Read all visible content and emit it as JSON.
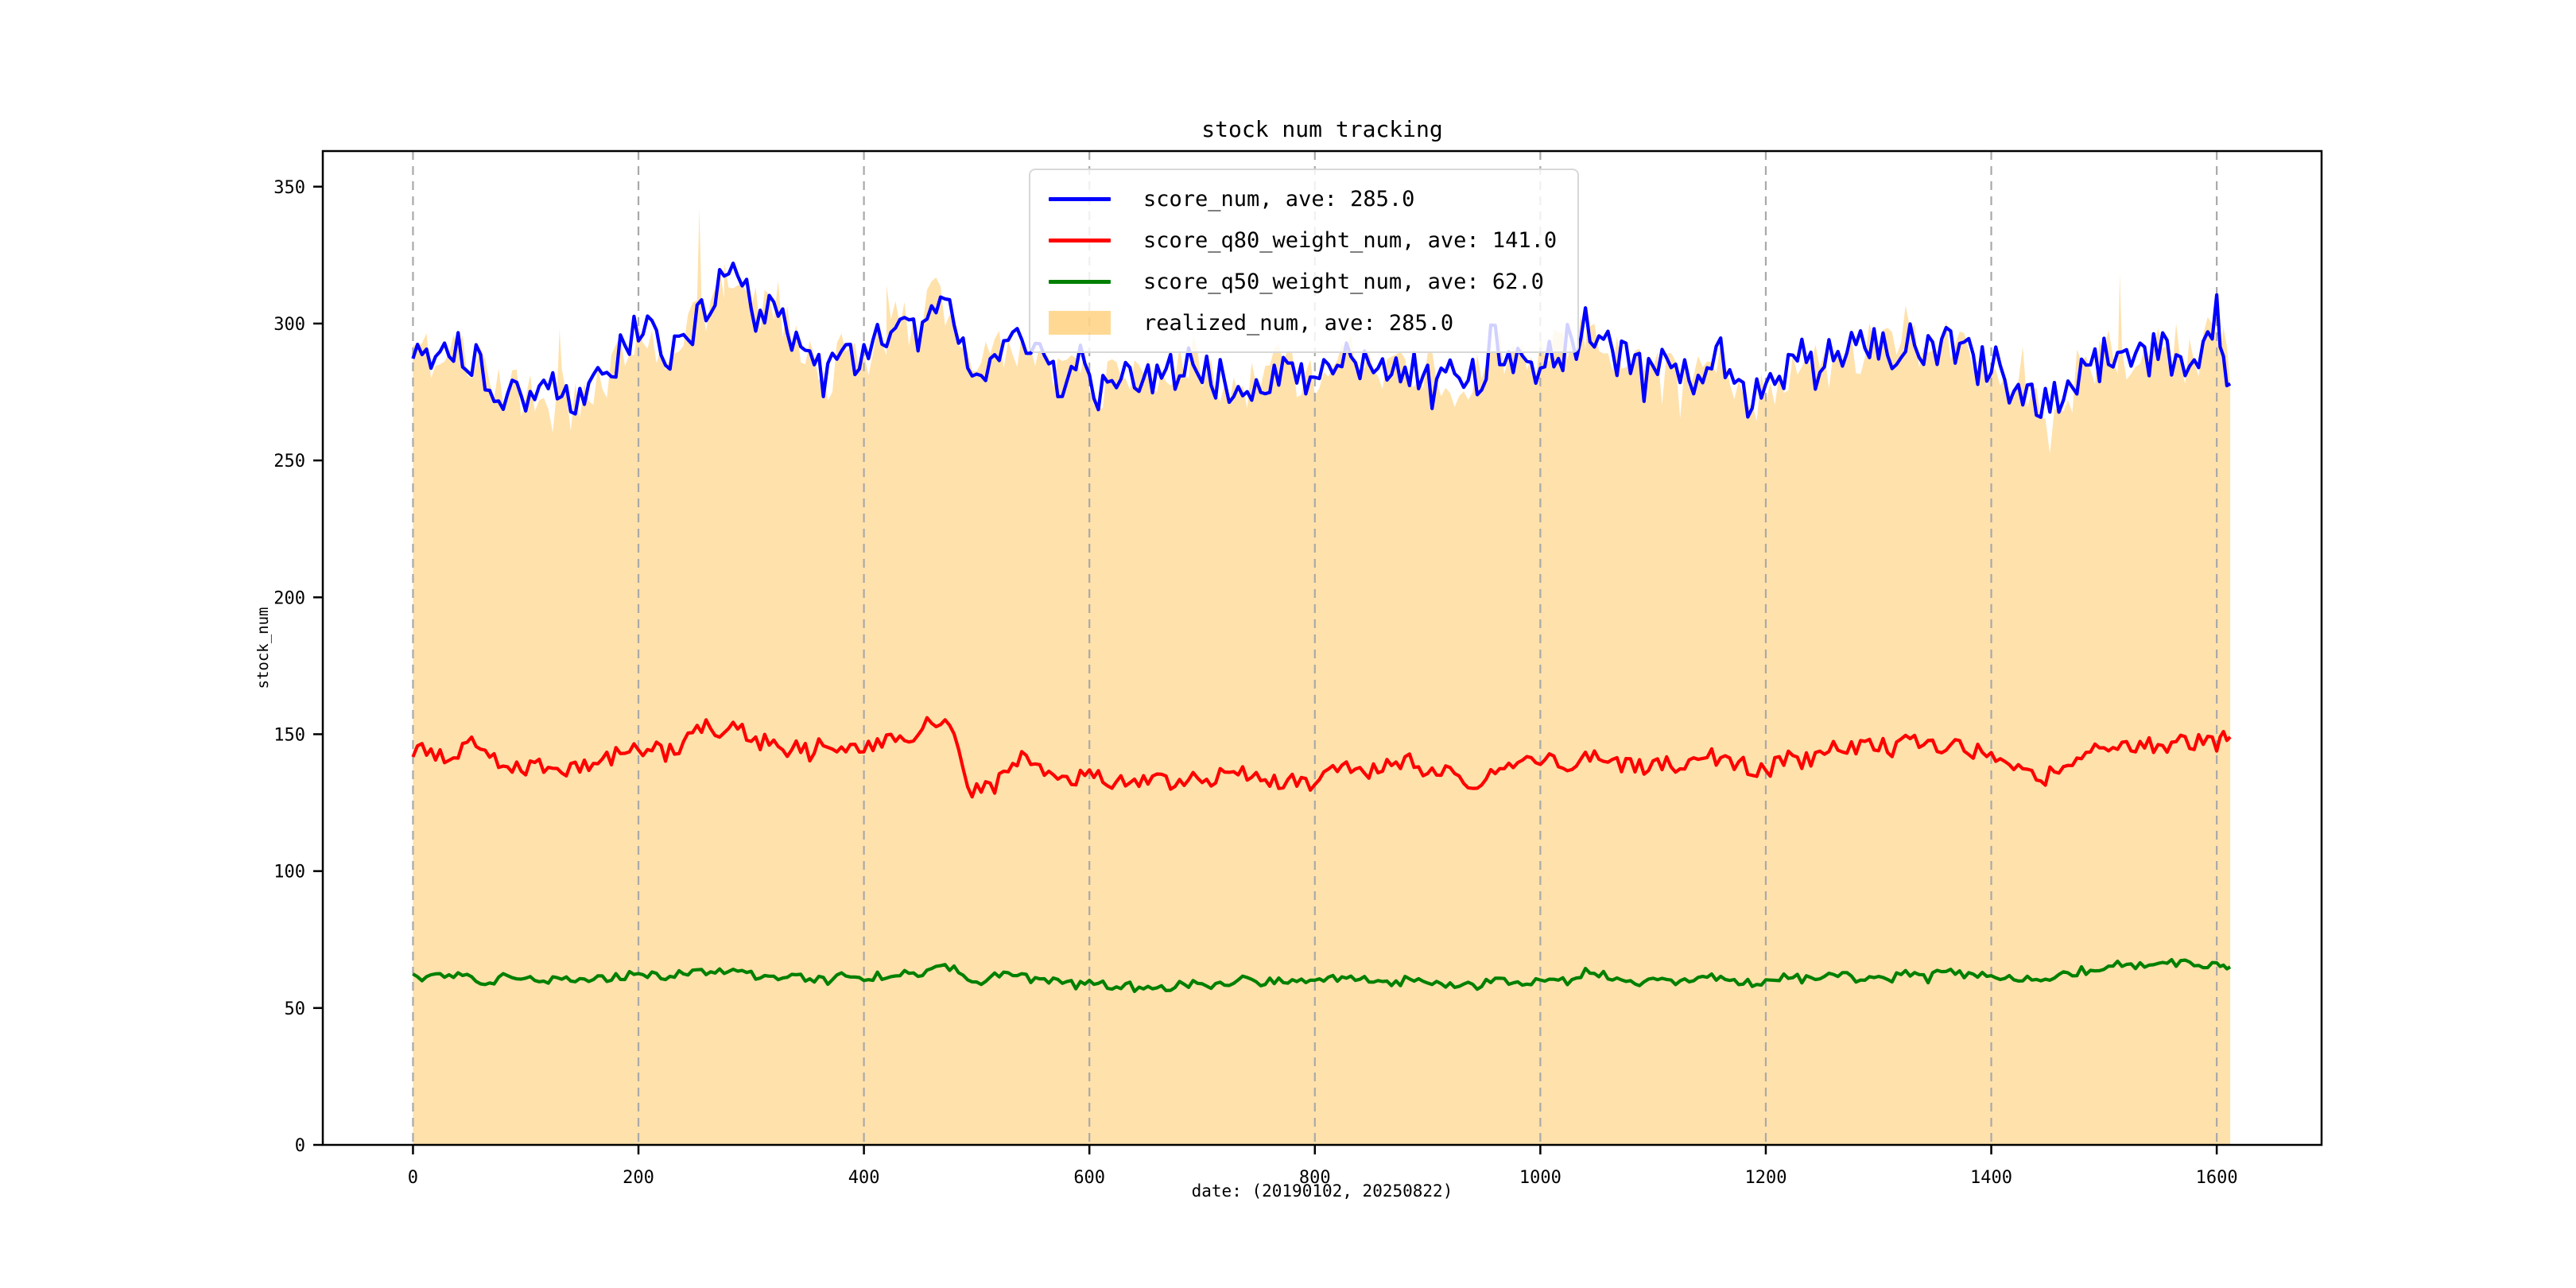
{
  "figure": {
    "title": "stock num tracking",
    "xlabel": "date: (20190102, 20250822)",
    "ylabel": "stock_num"
  },
  "chart_data": {
    "type": "line",
    "title": "stock num tracking",
    "xlabel": "date: (20190102, 20250822)",
    "ylabel": "stock_num",
    "xlim": [
      -80,
      1693
    ],
    "ylim": [
      0,
      363
    ],
    "x_ticks": [
      0,
      200,
      400,
      600,
      800,
      1000,
      1200,
      1400,
      1600
    ],
    "y_ticks": [
      0,
      50,
      100,
      150,
      200,
      250,
      300,
      350
    ],
    "grid": {
      "vertical": true,
      "horizontal": false,
      "style": "dashed",
      "color": "#a9a9a9"
    },
    "legend_position": "upper center",
    "x_start": 0,
    "x_step": 16,
    "x_end": 1612,
    "series": [
      {
        "name": "score_num",
        "label": "score_num, ave: 285.0",
        "type": "line",
        "color": "#0000ff",
        "average": 285.0,
        "noise_amplitude": 8,
        "values": [
          293,
          288,
          295,
          290,
          283,
          276,
          274,
          273,
          277,
          273,
          276,
          283,
          294,
          297,
          288,
          296,
          303,
          312,
          315,
          305,
          310,
          297,
          285,
          280,
          291,
          286,
          295,
          303,
          298,
          310,
          302,
          284,
          288,
          292,
          290,
          283,
          279,
          285,
          275,
          281,
          284,
          280,
          281,
          288,
          283,
          278,
          278,
          281,
          284,
          280,
          281,
          287,
          290,
          285,
          279,
          285,
          283,
          281,
          276,
          280,
          291,
          286,
          284,
          291,
          288,
          299,
          294,
          287,
          282,
          284,
          281,
          279,
          288,
          283,
          270,
          276,
          281,
          287,
          283,
          291,
          289,
          294,
          290,
          296,
          288,
          294,
          289,
          284,
          281,
          278,
          273,
          271,
          276,
          284,
          289,
          284,
          287,
          291,
          285,
          289,
          303,
          278
        ]
      },
      {
        "name": "score_q80_weight_num",
        "label": "score_q80_weight_num, ave: 141.0",
        "type": "line",
        "color": "#ff0000",
        "average": 141.0,
        "noise_amplitude": 3.2,
        "values": [
          144,
          143,
          140,
          147,
          142,
          138,
          137,
          139,
          136,
          138,
          140,
          142,
          144,
          145,
          143,
          147,
          152,
          150,
          153,
          148,
          146,
          144,
          146,
          147,
          145,
          146,
          147,
          149,
          151,
          155,
          151,
          128,
          134,
          139,
          141,
          138,
          135,
          134,
          134,
          133,
          134,
          133,
          132,
          135,
          133,
          136,
          138,
          135,
          133,
          134,
          132,
          136,
          138,
          137,
          139,
          141,
          138,
          136,
          134,
          133,
          137,
          140,
          143,
          141,
          138,
          143,
          141,
          139,
          138,
          140,
          139,
          141,
          142,
          140,
          138,
          137,
          141,
          140,
          143,
          145,
          144,
          146,
          145,
          147,
          145,
          146,
          144,
          143,
          141,
          138,
          133,
          136,
          140,
          143,
          145,
          146,
          147,
          146,
          147,
          146,
          147,
          149
        ]
      },
      {
        "name": "score_q50_weight_num",
        "label": "score_q50_weight_num, ave: 62.0",
        "type": "line",
        "color": "#008000",
        "average": 62.0,
        "noise_amplitude": 1.6,
        "values": [
          62,
          61,
          62,
          61,
          60,
          61,
          60,
          61,
          60,
          61,
          60,
          61,
          62,
          62,
          61,
          63,
          64,
          63,
          64,
          62,
          61,
          62,
          61,
          60,
          62,
          61,
          62,
          63,
          62,
          66,
          64,
          60,
          61,
          62,
          61,
          60,
          59,
          60,
          59,
          58,
          59,
          58,
          58,
          59,
          58,
          59,
          60,
          59,
          60,
          59,
          60,
          61,
          61,
          60,
          59,
          60,
          59,
          58,
          59,
          58,
          61,
          60,
          59,
          61,
          60,
          63,
          61,
          60,
          59,
          60,
          59,
          60,
          61,
          60,
          59,
          60,
          61,
          60,
          61,
          62,
          61,
          62,
          61,
          63,
          62,
          63,
          62,
          63,
          62,
          61,
          60,
          61,
          63,
          64,
          66,
          65,
          66,
          67,
          66,
          66,
          65,
          65
        ]
      },
      {
        "name": "realized_num",
        "label": "realized_num, ave: 285.0",
        "type": "area",
        "color": "#ffa500",
        "fill_color": "rgba(255,165,0,0.33)",
        "average": 285.0,
        "noise_amplitude": 9,
        "spikes": [
          {
            "x": 130,
            "v": 298
          },
          {
            "x": 254,
            "v": 342
          },
          {
            "x": 276,
            "v": 322
          },
          {
            "x": 420,
            "v": 314
          },
          {
            "x": 1042,
            "v": 306
          },
          {
            "x": 1514,
            "v": 318
          },
          {
            "x": 1576,
            "v": 294
          }
        ],
        "values": [
          293,
          288,
          295,
          290,
          283,
          276,
          274,
          273,
          277,
          273,
          276,
          283,
          294,
          297,
          288,
          296,
          303,
          312,
          315,
          305,
          310,
          297,
          285,
          280,
          291,
          286,
          295,
          303,
          298,
          310,
          302,
          284,
          288,
          292,
          290,
          283,
          279,
          285,
          275,
          281,
          284,
          280,
          281,
          288,
          283,
          278,
          278,
          281,
          284,
          280,
          281,
          287,
          290,
          285,
          279,
          285,
          283,
          281,
          276,
          280,
          291,
          286,
          284,
          291,
          288,
          299,
          294,
          287,
          282,
          284,
          281,
          279,
          288,
          283,
          270,
          276,
          281,
          287,
          283,
          291,
          289,
          294,
          290,
          296,
          288,
          294,
          289,
          284,
          281,
          278,
          273,
          271,
          276,
          284,
          289,
          284,
          287,
          291,
          285,
          289,
          303,
          278
        ]
      }
    ]
  }
}
